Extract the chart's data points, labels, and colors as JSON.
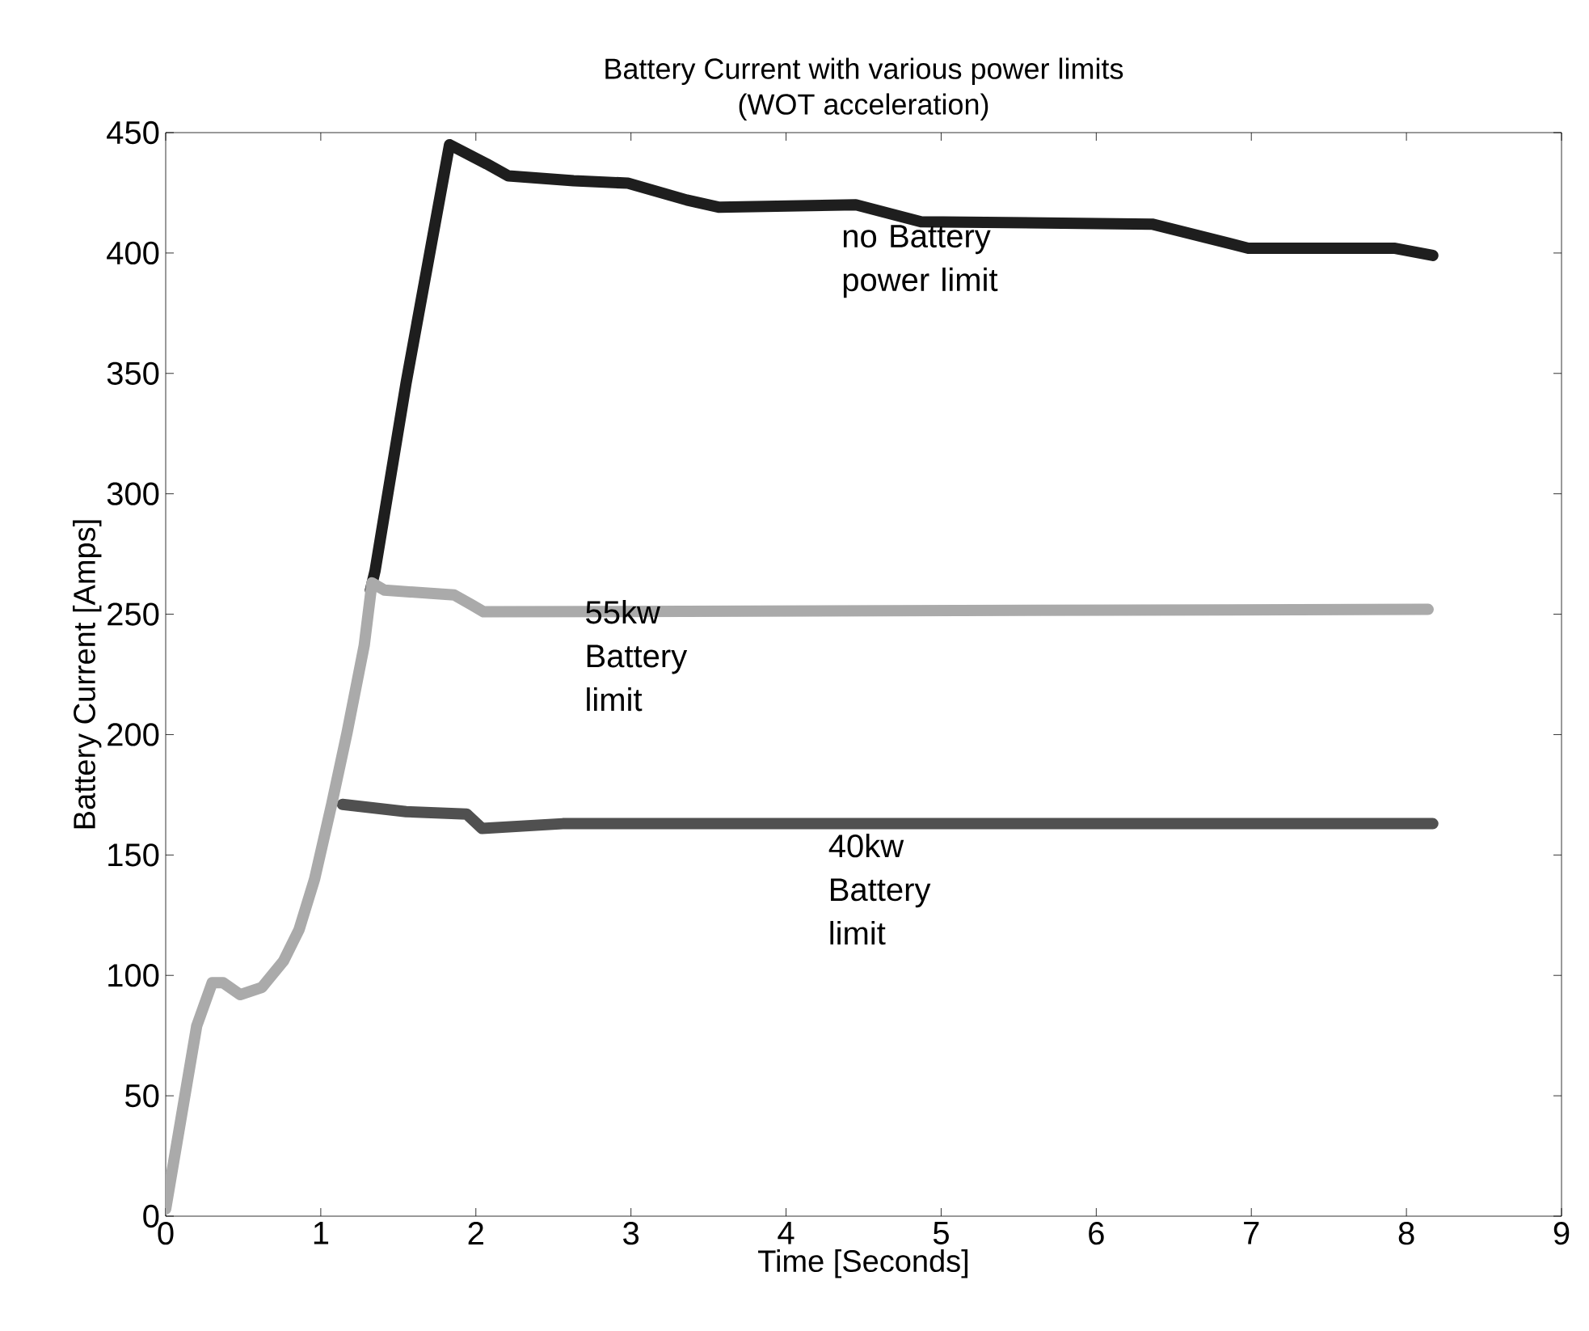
{
  "chart_data": {
    "type": "line",
    "title": "Battery Current with various power limits",
    "subtitle": "(WOT acceleration)",
    "xlabel": "Time [Seconds]",
    "ylabel": "Battery Current [Amps]",
    "xlim": [
      0,
      9
    ],
    "ylim": [
      0,
      450
    ],
    "xticks": [
      0,
      1,
      2,
      3,
      4,
      5,
      6,
      7,
      8,
      9
    ],
    "yticks": [
      0,
      50,
      100,
      150,
      200,
      250,
      300,
      350,
      400,
      450
    ],
    "grid": false,
    "marker": "none",
    "line_style": "solid",
    "series": [
      {
        "color": "#1e1e1e",
        "x": [
          1.32,
          1.35,
          1.55,
          1.83,
          2.07,
          2.21,
          2.63,
          2.98,
          3.36,
          3.57,
          4.45,
          4.87,
          6.36,
          6.98,
          7.92,
          8.17
        ],
        "values": [
          260,
          268,
          346,
          445,
          437,
          432,
          430,
          429,
          422,
          419,
          420,
          413,
          412,
          402,
          402,
          399
        ]
      },
      {
        "color": "#505050",
        "x": [
          1.14,
          1.55,
          1.94,
          2.04,
          2.56,
          8.17
        ],
        "values": [
          171,
          168,
          167,
          161,
          163,
          163
        ]
      },
      {
        "color": "#aaaaaa",
        "x": [
          0,
          0.2,
          0.3,
          0.37,
          0.48,
          0.62,
          0.76,
          0.86,
          0.96,
          1.07,
          1.17,
          1.28,
          1.33,
          1.41,
          1.86,
          1.97,
          2.05,
          8.14
        ],
        "values": [
          3,
          79,
          97,
          97,
          92,
          95,
          106,
          119,
          140,
          171,
          201,
          237,
          263,
          260,
          258,
          254,
          251,
          252
        ]
      }
    ],
    "annotations": [
      "no Battery power limit",
      {
        "text": "55kw Battery limit",
        "x": 2.7,
        "y": 256
      },
      {
        "text": "40kw Battery limit",
        "x": 4.27,
        "y": 159
      }
    ]
  }
}
